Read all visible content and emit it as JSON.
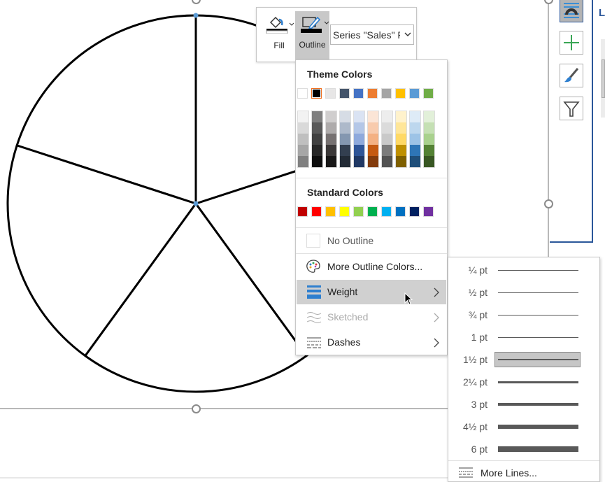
{
  "chart_data": {
    "type": "pie",
    "values": [
      1,
      1,
      1,
      1,
      1
    ],
    "slice_fill": "#ffffff",
    "outline_color": "#000000"
  },
  "toolbar": {
    "fill_label": "Fill",
    "outline_label": "Outline",
    "series_select": "Series \"Sales\" P"
  },
  "menu": {
    "theme_title": "Theme Colors",
    "theme_colors": [
      "#ffffff",
      "#000000",
      "#e7e6e6",
      "#44546a",
      "#4472c4",
      "#ed7d31",
      "#a5a5a5",
      "#ffc000",
      "#5b9bd5",
      "#70ad47"
    ],
    "selected_theme_color": "#000000",
    "theme_shades": [
      [
        "#f2f2f2",
        "#d9d9d9",
        "#bfbfbf",
        "#a6a6a6",
        "#808080"
      ],
      [
        "#7f7f7f",
        "#595959",
        "#404040",
        "#262626",
        "#0d0d0d"
      ],
      [
        "#d0cece",
        "#aeabab",
        "#767171",
        "#3b3838",
        "#181717"
      ],
      [
        "#d6dce5",
        "#adb9ca",
        "#8497b0",
        "#333f50",
        "#222a35"
      ],
      [
        "#dae3f3",
        "#b4c7e7",
        "#8faadc",
        "#2f5597",
        "#203864"
      ],
      [
        "#fbe5d6",
        "#f8cbad",
        "#f4b183",
        "#c55a11",
        "#843c0c"
      ],
      [
        "#ededed",
        "#dbdbdb",
        "#c9c9c9",
        "#7b7b7b",
        "#525252"
      ],
      [
        "#fff2cc",
        "#ffe699",
        "#ffd966",
        "#bf9000",
        "#7f6000"
      ],
      [
        "#deebf7",
        "#bdd7ee",
        "#9dc3e6",
        "#2e75b6",
        "#1f4e79"
      ],
      [
        "#e2f0d9",
        "#c5e0b4",
        "#a9d18e",
        "#548235",
        "#385723"
      ]
    ],
    "standard_title": "Standard Colors",
    "standard_colors": [
      "#c00000",
      "#ff0000",
      "#ffc000",
      "#ffff00",
      "#92d050",
      "#00b050",
      "#00b0f0",
      "#0070c0",
      "#002060",
      "#7030a0"
    ],
    "no_outline": "No Outline",
    "more_colors": "More Outline Colors...",
    "weight": "Weight",
    "sketched": "Sketched",
    "dashes": "Dashes"
  },
  "weights": {
    "items": [
      {
        "label": "¼ pt",
        "pt": 0.25
      },
      {
        "label": "½ pt",
        "pt": 0.5
      },
      {
        "label": "¾ pt",
        "pt": 0.75
      },
      {
        "label": "1 pt",
        "pt": 1
      },
      {
        "label": "1½ pt",
        "pt": 1.5,
        "selected": true
      },
      {
        "label": "2¼ pt",
        "pt": 2.25
      },
      {
        "label": "3 pt",
        "pt": 3
      },
      {
        "label": "4½ pt",
        "pt": 4.5
      },
      {
        "label": "6 pt",
        "pt": 6
      }
    ],
    "more_lines": "More Lines..."
  },
  "side_panel": {
    "heading_initial": "L"
  }
}
